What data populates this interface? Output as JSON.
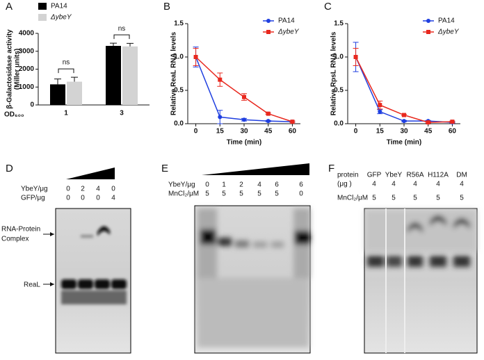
{
  "chart_data": [
    {
      "type": "bar",
      "panel": "A",
      "y_label": [
        "β-Galactosidase activity",
        "(Miller units)"
      ],
      "x_label": "OD₆₀₀",
      "categories": [
        "1",
        "3"
      ],
      "series": [
        {
          "name": "PA14",
          "color": "#000000",
          "values": [
            1150,
            3300
          ],
          "errors": [
            300,
            150
          ]
        },
        {
          "name": "ΔybeY",
          "color": "#d3d3d3",
          "values": [
            1300,
            3270
          ],
          "errors": [
            250,
            170
          ]
        }
      ],
      "ylim": [
        0,
        4000
      ],
      "yticks": [
        0,
        1000,
        2000,
        3000,
        4000
      ],
      "annotations": [
        "ns",
        "ns"
      ]
    },
    {
      "type": "line",
      "panel": "B",
      "y_label": "Relative ReaL RNA levels",
      "x_label": "Time (min)",
      "x": [
        0,
        15,
        30,
        45,
        60
      ],
      "series": [
        {
          "name": "PA14",
          "color": "#1f3fe0",
          "values": [
            1.0,
            0.1,
            0.06,
            0.04,
            0.03
          ],
          "errors": [
            0.15,
            0.1,
            0.02,
            0.01,
            0.01
          ]
        },
        {
          "name": "ΔybeY",
          "color": "#e8281e",
          "values": [
            1.0,
            0.66,
            0.4,
            0.15,
            0.03
          ],
          "errors": [
            0.13,
            0.1,
            0.05,
            0.01,
            0.01
          ]
        }
      ],
      "xlim": [
        -5,
        65
      ],
      "xticks": [
        0,
        15,
        30,
        45,
        60
      ],
      "ylim": [
        0,
        1.5
      ],
      "yticks": [
        {
          "value": 0,
          "label": "0.0"
        },
        {
          "value": 0.5,
          "label": "0.5"
        },
        {
          "value": 1,
          "label": "1.0"
        },
        {
          "value": 1.5,
          "label": "1.5"
        }
      ]
    },
    {
      "type": "line",
      "panel": "C",
      "y_label": "Relative RpsL RNA levels",
      "x_label": "Time (min)",
      "x": [
        0,
        15,
        30,
        45,
        60
      ],
      "series": [
        {
          "name": "PA14",
          "color": "#1f3fe0",
          "values": [
            1.0,
            0.18,
            0.04,
            0.04,
            0.02
          ],
          "errors": [
            0.22,
            0.03,
            0.01,
            0.01,
            0.01
          ]
        },
        {
          "name": "ΔybeY",
          "color": "#e8281e",
          "values": [
            1.0,
            0.28,
            0.13,
            0.02,
            0.03
          ],
          "errors": [
            0.13,
            0.06,
            0.01,
            0.01,
            0.01
          ]
        }
      ],
      "xlim": [
        -5,
        65
      ],
      "xticks": [
        0,
        15,
        30,
        45,
        60
      ],
      "ylim": [
        0,
        1.5
      ],
      "yticks": [
        {
          "value": 0,
          "label": "0.0"
        },
        {
          "value": 0.5,
          "label": "0.5"
        },
        {
          "value": 1,
          "label": "1.0"
        },
        {
          "value": 1.5,
          "label": "1.5"
        }
      ]
    }
  ],
  "panel_d": {
    "panel": "D",
    "rows": [
      {
        "label": "YbeY/μg",
        "values": [
          0,
          2,
          4,
          0
        ]
      },
      {
        "label": "GFP/μg",
        "values": [
          0,
          0,
          0,
          4
        ]
      }
    ],
    "complex_label": [
      "RNA-Protein",
      "Complex"
    ],
    "band_label": "ReaL"
  },
  "panel_e": {
    "panel": "E",
    "rows": [
      {
        "label": "YbeY/μg",
        "values": [
          0,
          1,
          2,
          4,
          6,
          6
        ]
      },
      {
        "label": "MnCl₂/μM",
        "values": [
          5,
          5,
          5,
          5,
          5,
          0
        ]
      }
    ]
  },
  "panel_f": {
    "panel": "F",
    "rows": [
      {
        "label": "protein",
        "values": [
          "GFP",
          "YbeY",
          "R56A",
          "H112A",
          "DM"
        ]
      },
      {
        "label": "(μg )",
        "values": [
          4,
          4,
          4,
          4,
          4
        ]
      },
      {
        "label": "MnCl₂/μM",
        "values": [
          5,
          5,
          5,
          5,
          5
        ]
      }
    ]
  }
}
